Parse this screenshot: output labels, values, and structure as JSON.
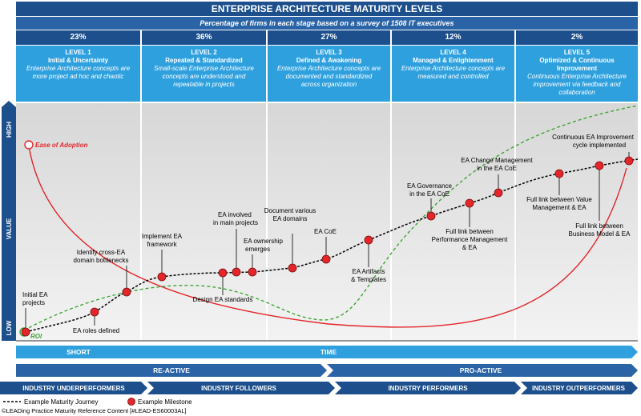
{
  "title": "ENTERPRISE ARCHITECTURE MATURITY LEVELS",
  "subtitle": "Percentage of firms in each stage based on a survey of 1508 IT executives",
  "levels": [
    {
      "pct": "23%",
      "title": "LEVEL 1",
      "subtitle": "Initial & Uncertainty",
      "desc1": "Enterprise Architecture concepts are",
      "desc2": "more project ad hoc and chaotic",
      "desc3": ""
    },
    {
      "pct": "36%",
      "title": "LEVEL 2",
      "subtitle": "Repeated & Standardized",
      "desc1": "Small-scale Enterprise Architecture",
      "desc2": "concepts are understood and",
      "desc3": "repeatable in projects"
    },
    {
      "pct": "27%",
      "title": "LEVEL 3",
      "subtitle": "Defined & Awakening",
      "desc1": "Enterprise Architecture concepts are",
      "desc2": "documented and standardized",
      "desc3": "across organization"
    },
    {
      "pct": "12%",
      "title": "LEVEL 4",
      "subtitle": "Managed & Enlightenment",
      "desc1": "Enterprise Architecture concepts are",
      "desc2": "measured and controlled",
      "desc3": ""
    },
    {
      "pct": "2%",
      "title": "LEVEL 5",
      "subtitle": "Optimized & Continuous",
      "subtitle2": "Improvement",
      "desc1": "Continuous Enterprise Architecture",
      "desc2": "improvement via feedback and",
      "desc3": "collaboration"
    }
  ],
  "axis": {
    "y_label": "VALUE",
    "high": "HIGH",
    "low": "LOW"
  },
  "curves": {
    "ease": "Ease of Adoption",
    "roi": "ROI"
  },
  "milestones": [
    {
      "l1": "Initial EA",
      "l2": "projects"
    },
    {
      "l1": "EA roles defined",
      "l2": ""
    },
    {
      "l1": "Identify cross-EA",
      "l2": "domain bottlenecks"
    },
    {
      "l1": "Implement EA",
      "l2": "framework"
    },
    {
      "l1": "Design EA standards",
      "l2": ""
    },
    {
      "l1": "EA involved",
      "l2": "in main projects"
    },
    {
      "l1": "EA ownership",
      "l2": "emerges"
    },
    {
      "l1": "Document various",
      "l2": "EA domains"
    },
    {
      "l1": "EA CoE",
      "l2": ""
    },
    {
      "l1": "EA Artifacts",
      "l2": "& Templates"
    },
    {
      "l1": "EA Governance",
      "l2": "in the EA CoE"
    },
    {
      "l1": "Full link between",
      "l2": "Performance Management",
      "l3": "& EA"
    },
    {
      "l1": "EA Change Management",
      "l2": "in the EA CoE"
    },
    {
      "l1": "Full link between Value",
      "l2": "Management & EA"
    },
    {
      "l1": "Full link between",
      "l2": "Business Model & EA"
    },
    {
      "l1": "Continuous EA Improvement",
      "l2": "cycle implemented"
    }
  ],
  "bars": {
    "short": "SHORT",
    "time": "TIME",
    "reactive": "RE-ACTIVE",
    "proactive": "PRO-ACTIVE",
    "segments": [
      "INDUSTRY UNDERPERFORMERS",
      "INDUSTRY FOLLOWERS",
      "INDUSTRY PERFORMERS",
      "INDUSTRY OUTPERFORMERS"
    ]
  },
  "legend": {
    "journey": "Example Maturity Journey",
    "milestone": "Example Milestone"
  },
  "footer": "©LEADing Practice Maturity Reference Content [#LEAD-ES60003AL]",
  "colors": {
    "dark_blue": "#1c4f8c",
    "mid_blue": "#2a63a6",
    "light_blue": "#2fa0de",
    "red": "#e3262a",
    "green": "#3fa535"
  }
}
